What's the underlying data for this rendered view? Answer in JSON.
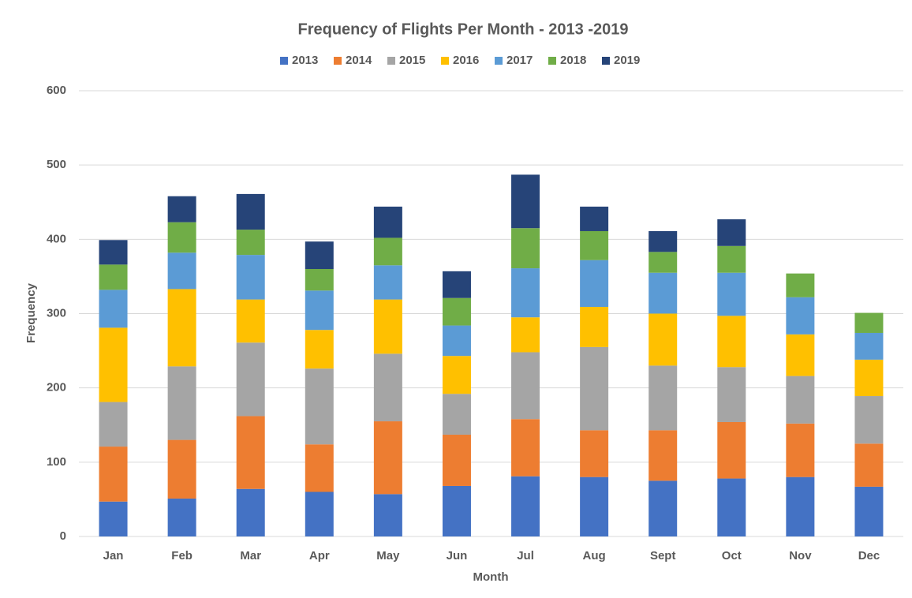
{
  "chart_data": {
    "type": "bar",
    "stacked": true,
    "title": "Frequency of Flights Per Month - 2013 -2019",
    "x_label": "Month",
    "y_label": "Frequency",
    "categories": [
      "Jan",
      "Feb",
      "Mar",
      "Apr",
      "May",
      "Jun",
      "Jul",
      "Aug",
      "Sept",
      "Oct",
      "Nov",
      "Dec"
    ],
    "series": [
      {
        "name": "2013",
        "color": "#4472c4",
        "values": [
          47,
          51,
          64,
          60,
          57,
          68,
          81,
          80,
          75,
          78,
          80,
          67
        ]
      },
      {
        "name": "2014",
        "color": "#ed7d31",
        "values": [
          74,
          79,
          98,
          64,
          98,
          69,
          77,
          63,
          68,
          76,
          72,
          58
        ]
      },
      {
        "name": "2015",
        "color": "#a5a5a5",
        "values": [
          60,
          99,
          99,
          102,
          91,
          55,
          90,
          112,
          87,
          74,
          64,
          64
        ]
      },
      {
        "name": "2016",
        "color": "#ffc000",
        "values": [
          100,
          104,
          58,
          52,
          73,
          51,
          47,
          54,
          70,
          69,
          56,
          49
        ]
      },
      {
        "name": "2017",
        "color": "#5b9bd5",
        "values": [
          51,
          49,
          60,
          53,
          46,
          41,
          66,
          63,
          55,
          58,
          50,
          36
        ]
      },
      {
        "name": "2018",
        "color": "#70ad47",
        "values": [
          34,
          41,
          34,
          29,
          37,
          37,
          54,
          39,
          28,
          36,
          32,
          27
        ]
      },
      {
        "name": "2019",
        "color": "#264478",
        "values": [
          33,
          35,
          48,
          37,
          42,
          36,
          72,
          33,
          28,
          36,
          null,
          null
        ]
      }
    ],
    "ylim": [
      0,
      600
    ],
    "yticks": [
      0,
      100,
      200,
      300,
      400,
      500,
      600
    ],
    "grid": true,
    "legend": "top"
  }
}
